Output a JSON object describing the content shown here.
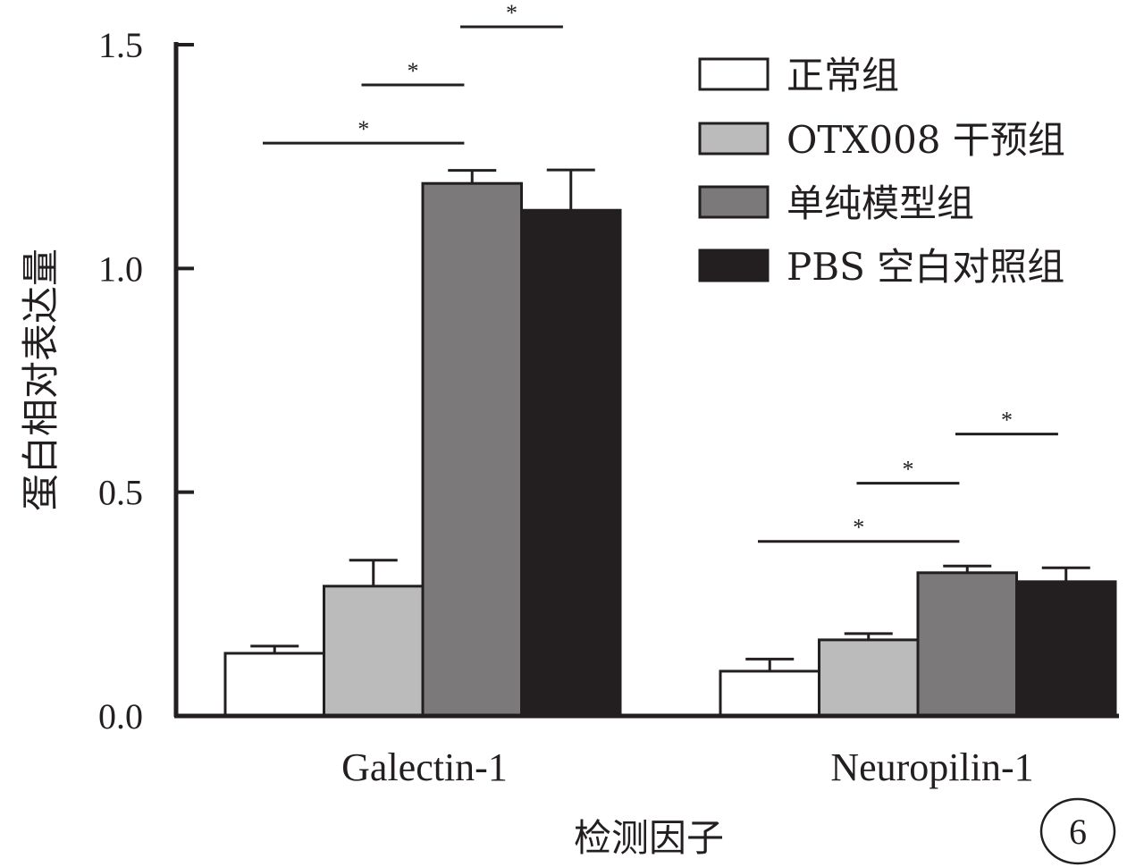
{
  "chart_data": {
    "type": "bar",
    "ylabel": "蛋白相对表达量",
    "xlabel": "检测因子",
    "ylim": [
      0,
      1.5
    ],
    "yticks": [
      "0.0",
      "0.5",
      "1.0",
      "1.5"
    ],
    "categories": [
      "Galectin-1",
      "Neuropilin-1"
    ],
    "series": [
      {
        "name": "正常组",
        "color": "#ffffff",
        "values": [
          0.14,
          0.1
        ],
        "errors": [
          0.016,
          0.027
        ]
      },
      {
        "name": "OTX008 干预组",
        "color": "#bbbbbb",
        "values": [
          0.29,
          0.17
        ],
        "errors": [
          0.058,
          0.014
        ]
      },
      {
        "name": "单纯模型组",
        "color": "#7b797a",
        "values": [
          1.19,
          0.32
        ],
        "errors": [
          0.029,
          0.015
        ]
      },
      {
        "name": "PBS 空白对照组",
        "color": "#231f20",
        "values": [
          1.13,
          0.3
        ],
        "errors": [
          0.09,
          0.031
        ]
      }
    ],
    "significance": [
      {
        "category": 0,
        "from": 0,
        "to": 2,
        "label": "*",
        "y": 1.28
      },
      {
        "category": 0,
        "from": 1,
        "to": 2,
        "label": "*",
        "y": 1.41
      },
      {
        "category": 0,
        "from": 2,
        "to": 3,
        "label": "*",
        "y": 1.54
      },
      {
        "category": 1,
        "from": 0,
        "to": 2,
        "label": "*",
        "y": 0.39
      },
      {
        "category": 1,
        "from": 1,
        "to": 2,
        "label": "*",
        "y": 0.52
      },
      {
        "category": 1,
        "from": 2,
        "to": 3,
        "label": "*",
        "y": 0.63
      }
    ],
    "legend_position": "top-right",
    "panel_label": "6"
  }
}
